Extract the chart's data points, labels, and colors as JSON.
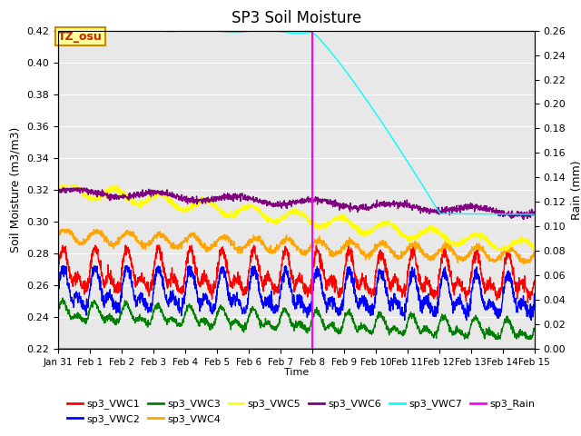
{
  "title": "SP3 Soil Moisture",
  "ylabel_left": "Soil Moisture (m3/m3)",
  "ylabel_right": "Rain (mm)",
  "xlabel": "Time",
  "ylim_left": [
    0.22,
    0.42
  ],
  "ylim_right": [
    0.0,
    0.26
  ],
  "xlim_days": [
    0,
    15
  ],
  "x_tick_labels": [
    "Jan 31",
    "Feb 1",
    "Feb 2",
    "Feb 3",
    "Feb 4",
    "Feb 5",
    "Feb 6",
    "Feb 7",
    "Feb 8",
    "Feb 9",
    "Feb 10",
    "Feb 11",
    "Feb 12",
    "Feb 13",
    "Feb 14",
    "Feb 15"
  ],
  "vertical_line_day": 8,
  "vertical_line_color": "magenta",
  "tz_osu_label": "TZ_osu",
  "tz_osu_color": "#cc2200",
  "tz_osu_bg": "#ffff99",
  "tz_osu_border": "#cc8800",
  "background_color": "#e8e8e8",
  "series_colors": {
    "sp3_VWC1": "red",
    "sp3_VWC2": "blue",
    "sp3_VWC3": "green",
    "sp3_VWC4": "orange",
    "sp3_VWC5": "yellow",
    "sp3_VWC6": "purple",
    "sp3_VWC7": "cyan",
    "sp3_Rain": "magenta"
  },
  "left_yticks": [
    0.22,
    0.24,
    0.26,
    0.28,
    0.3,
    0.32,
    0.34,
    0.36,
    0.38,
    0.4,
    0.42
  ],
  "right_yticks": [
    0.0,
    0.02,
    0.04,
    0.06,
    0.08,
    0.1,
    0.12,
    0.14,
    0.16,
    0.18,
    0.2,
    0.22,
    0.24,
    0.26
  ]
}
